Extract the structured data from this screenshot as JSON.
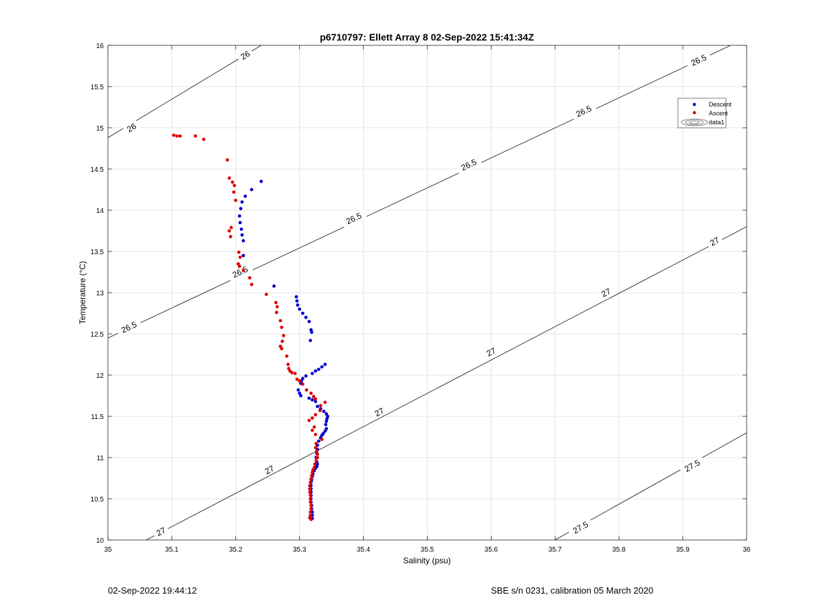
{
  "chart_data": {
    "type": "scatter",
    "title": "p6710797: Ellett Array 8 02-Sep-2022 15:41:34Z",
    "xlabel": "Salinity (psu)",
    "ylabel": "Temperature (°C)",
    "xlim": [
      35,
      36
    ],
    "ylim": [
      10,
      16
    ],
    "xticks": [
      "35",
      "35.1",
      "35.2",
      "35.3",
      "35.4",
      "35.5",
      "35.6",
      "35.7",
      "35.8",
      "35.9",
      "36"
    ],
    "yticks": [
      "10",
      "10.5",
      "11",
      "11.5",
      "12",
      "12.5",
      "13",
      "13.5",
      "14",
      "14.5",
      "15",
      "15.5",
      "16"
    ],
    "grid": true,
    "legend_position": "top-right",
    "legend": [
      "Descent",
      "Ascent",
      "data1"
    ],
    "series": [
      {
        "name": "Descent",
        "color": "#0000cc",
        "points": [
          [
            35.24,
            14.35
          ],
          [
            35.225,
            14.25
          ],
          [
            35.215,
            14.17
          ],
          [
            35.21,
            14.1
          ],
          [
            35.208,
            14.02
          ],
          [
            35.206,
            13.93
          ],
          [
            35.207,
            13.85
          ],
          [
            35.209,
            13.77
          ],
          [
            35.21,
            13.7
          ],
          [
            35.212,
            13.63
          ],
          [
            35.212,
            13.45
          ],
          [
            35.26,
            13.08
          ],
          [
            35.295,
            12.95
          ],
          [
            35.296,
            12.9
          ],
          [
            35.297,
            12.85
          ],
          [
            35.3,
            12.8
          ],
          [
            35.305,
            12.75
          ],
          [
            35.31,
            12.7
          ],
          [
            35.315,
            12.65
          ],
          [
            35.318,
            12.55
          ],
          [
            35.319,
            12.52
          ],
          [
            35.317,
            12.42
          ],
          [
            35.34,
            12.13
          ],
          [
            35.335,
            12.1
          ],
          [
            35.33,
            12.07
          ],
          [
            35.325,
            12.05
          ],
          [
            35.32,
            12.02
          ],
          [
            35.31,
            11.99
          ],
          [
            35.305,
            11.96
          ],
          [
            35.303,
            11.93
          ],
          [
            35.302,
            11.9
          ],
          [
            35.298,
            11.82
          ],
          [
            35.3,
            11.78
          ],
          [
            35.302,
            11.75
          ],
          [
            35.315,
            11.72
          ],
          [
            35.32,
            11.7
          ],
          [
            35.325,
            11.68
          ],
          [
            35.328,
            11.62
          ],
          [
            35.333,
            11.59
          ],
          [
            35.338,
            11.56
          ],
          [
            35.342,
            11.53
          ],
          [
            35.344,
            11.5
          ],
          [
            35.343,
            11.47
          ],
          [
            35.342,
            11.44
          ],
          [
            35.341,
            11.4
          ],
          [
            35.342,
            11.35
          ],
          [
            35.34,
            11.32
          ],
          [
            35.337,
            11.29
          ],
          [
            35.335,
            11.27
          ],
          [
            35.333,
            11.24
          ],
          [
            35.33,
            11.2
          ],
          [
            35.328,
            11.15
          ],
          [
            35.328,
            11.1
          ],
          [
            35.327,
            11.05
          ],
          [
            35.326,
            11.0
          ],
          [
            35.327,
            10.95
          ],
          [
            35.328,
            10.92
          ],
          [
            35.327,
            10.89
          ],
          [
            35.325,
            10.87
          ],
          [
            35.323,
            10.84
          ],
          [
            35.321,
            10.8
          ],
          [
            35.32,
            10.77
          ],
          [
            35.319,
            10.73
          ],
          [
            35.318,
            10.7
          ],
          [
            35.318,
            10.66
          ],
          [
            35.318,
            10.62
          ],
          [
            35.318,
            10.58
          ],
          [
            35.318,
            10.54
          ],
          [
            35.318,
            10.5
          ],
          [
            35.318,
            10.46
          ],
          [
            35.319,
            10.42
          ],
          [
            35.319,
            10.38
          ],
          [
            35.32,
            10.34
          ],
          [
            35.32,
            10.3
          ],
          [
            35.32,
            10.26
          ]
        ]
      },
      {
        "name": "Ascent",
        "color": "#dd0000",
        "points": [
          [
            35.103,
            14.91
          ],
          [
            35.108,
            14.9
          ],
          [
            35.113,
            14.9
          ],
          [
            35.137,
            14.9
          ],
          [
            35.15,
            14.86
          ],
          [
            35.187,
            14.61
          ],
          [
            35.19,
            14.39
          ],
          [
            35.195,
            14.34
          ],
          [
            35.198,
            14.3
          ],
          [
            35.197,
            14.22
          ],
          [
            35.2,
            14.12
          ],
          [
            35.193,
            13.79
          ],
          [
            35.19,
            13.75
          ],
          [
            35.192,
            13.68
          ],
          [
            35.205,
            13.49
          ],
          [
            35.207,
            13.43
          ],
          [
            35.204,
            13.35
          ],
          [
            35.206,
            13.32
          ],
          [
            35.212,
            13.27
          ],
          [
            35.222,
            13.18
          ],
          [
            35.225,
            13.1
          ],
          [
            35.248,
            12.98
          ],
          [
            35.263,
            12.88
          ],
          [
            35.265,
            12.83
          ],
          [
            35.264,
            12.76
          ],
          [
            35.27,
            12.66
          ],
          [
            35.272,
            12.58
          ],
          [
            35.275,
            12.48
          ],
          [
            35.273,
            12.41
          ],
          [
            35.27,
            12.35
          ],
          [
            35.272,
            12.32
          ],
          [
            35.28,
            12.23
          ],
          [
            35.282,
            12.13
          ],
          [
            35.283,
            12.08
          ],
          [
            35.285,
            12.05
          ],
          [
            35.288,
            12.03
          ],
          [
            35.293,
            12.02
          ],
          [
            35.296,
            11.95
          ],
          [
            35.3,
            11.93
          ],
          [
            35.305,
            11.89
          ],
          [
            35.311,
            11.82
          ],
          [
            35.318,
            11.78
          ],
          [
            35.322,
            11.74
          ],
          [
            35.325,
            11.71
          ],
          [
            35.333,
            11.63
          ],
          [
            35.34,
            11.67
          ],
          [
            35.332,
            11.57
          ],
          [
            35.325,
            11.52
          ],
          [
            35.32,
            11.48
          ],
          [
            35.315,
            11.45
          ],
          [
            35.323,
            11.37
          ],
          [
            35.32,
            11.33
          ],
          [
            35.325,
            11.28
          ],
          [
            35.335,
            11.22
          ],
          [
            35.326,
            11.17
          ],
          [
            35.325,
            11.12
          ],
          [
            35.327,
            11.08
          ],
          [
            35.328,
            11.04
          ],
          [
            35.328,
            11.0
          ],
          [
            35.326,
            10.96
          ],
          [
            35.324,
            10.92
          ],
          [
            35.323,
            10.88
          ],
          [
            35.321,
            10.85
          ],
          [
            35.32,
            10.82
          ],
          [
            35.319,
            10.78
          ],
          [
            35.318,
            10.74
          ],
          [
            35.317,
            10.7
          ],
          [
            35.316,
            10.66
          ],
          [
            35.316,
            10.62
          ],
          [
            35.316,
            10.58
          ],
          [
            35.317,
            10.54
          ],
          [
            35.317,
            10.5
          ],
          [
            35.317,
            10.46
          ],
          [
            35.318,
            10.42
          ],
          [
            35.318,
            10.38
          ],
          [
            35.317,
            10.34
          ],
          [
            35.317,
            10.3
          ],
          [
            35.316,
            10.27
          ],
          [
            35.318,
            10.25
          ]
        ]
      }
    ],
    "contours": [
      {
        "level": "26",
        "label": "26",
        "line": [
          [
            35.0,
            14.88
          ],
          [
            35.24,
            16.0
          ]
        ],
        "label_points": [
          [
            35.037,
            15.0
          ],
          [
            35.215,
            15.88
          ]
        ]
      },
      {
        "level": "26.5",
        "label": "26.5",
        "line": [
          [
            35.0,
            12.45
          ],
          [
            35.975,
            16.0
          ]
        ],
        "label_points": [
          [
            35.033,
            12.58
          ],
          [
            35.207,
            13.25
          ],
          [
            35.385,
            13.9
          ],
          [
            35.565,
            14.55
          ],
          [
            35.745,
            15.2
          ],
          [
            35.925,
            15.82
          ]
        ]
      },
      {
        "level": "27",
        "label": "27",
        "line": [
          [
            35.06,
            10.0
          ],
          [
            36.0,
            13.8
          ]
        ],
        "label_points": [
          [
            35.083,
            10.1
          ],
          [
            35.253,
            10.85
          ],
          [
            35.425,
            11.55
          ],
          [
            35.6,
            12.28
          ],
          [
            35.78,
            13.0
          ],
          [
            35.95,
            13.62
          ]
        ]
      },
      {
        "level": "27.5",
        "label": "27.5",
        "line": [
          [
            35.7,
            10.0
          ],
          [
            36.0,
            11.3
          ]
        ],
        "label_points": [
          [
            35.74,
            10.15
          ],
          [
            35.915,
            10.9
          ]
        ]
      }
    ]
  },
  "footer": {
    "left": "02-Sep-2022 19:44:12",
    "right": "SBE s/n 0231, calibration 05 March 2020"
  }
}
